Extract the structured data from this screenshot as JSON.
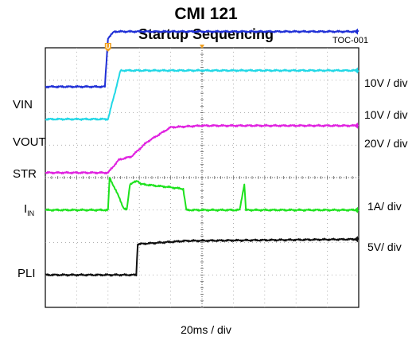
{
  "chart_data": {
    "type": "line",
    "title": "CMI  121",
    "subtitle": "Startup Sequencing",
    "figure_id": "TOC-001",
    "xlabel": "20ms / div",
    "x_scale_ms_per_div": 20,
    "x_divisions": 10,
    "y_divisions": 8,
    "x_range_ms": [
      0,
      200
    ],
    "grid": true,
    "trigger_marker": "U",
    "series": [
      {
        "name": "VIN",
        "scale": "10V / div",
        "color": "#1f2fd6",
        "x": [
          0,
          38,
          40,
          44,
          80,
          200
        ],
        "y": [
          2.8,
          2.8,
          4.3,
          4.5,
          4.5,
          4.5
        ]
      },
      {
        "name": "VOUT",
        "scale": "10V / div",
        "color": "#22d8e6",
        "x": [
          0,
          40,
          48,
          60,
          200
        ],
        "y": [
          1.8,
          1.8,
          3.3,
          3.3,
          3.3
        ]
      },
      {
        "name": "STR",
        "scale": "20V / div",
        "color": "#e020e0",
        "x": [
          0,
          40,
          47,
          55,
          65,
          80,
          100,
          200
        ],
        "y": [
          0.15,
          0.15,
          0.55,
          0.65,
          1.1,
          1.55,
          1.6,
          1.6
        ]
      },
      {
        "name": "I",
        "name_sub": "IN",
        "scale": "1A/ div",
        "color": "#1ee21e",
        "x": [
          0,
          40,
          41,
          43,
          47,
          50,
          52,
          54,
          59,
          61,
          70,
          80,
          88,
          90,
          91,
          124,
          127,
          128,
          129,
          200
        ],
        "y": [
          -1.0,
          -1.0,
          0.0,
          -0.2,
          -0.6,
          -0.95,
          -1.0,
          -0.2,
          -0.1,
          -0.2,
          -0.25,
          -0.3,
          -0.35,
          -1.0,
          -1.0,
          -1.0,
          -0.2,
          -1.0,
          -1.0,
          -1.0
        ]
      },
      {
        "name": "PLI",
        "scale": "5V/ div",
        "color": "#111111",
        "x": [
          0,
          58,
          59,
          90,
          200
        ],
        "y": [
          -3.0,
          -3.0,
          -2.05,
          -1.95,
          -1.9
        ]
      }
    ]
  }
}
